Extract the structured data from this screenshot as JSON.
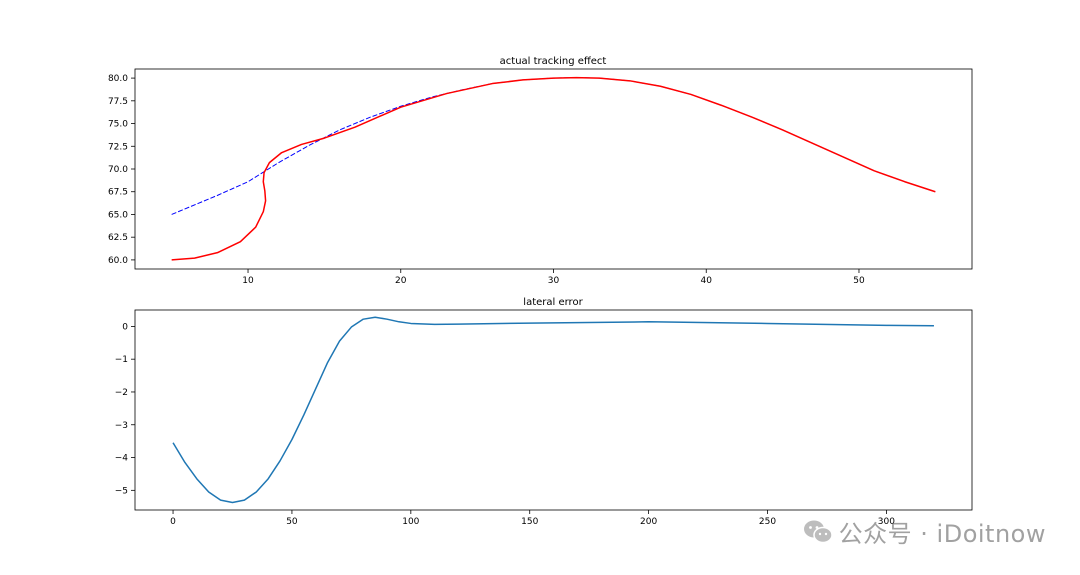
{
  "watermark": {
    "text": "公众号 · iDoitnow",
    "icon": "wechat-icon"
  },
  "chart_data": [
    {
      "type": "line",
      "title": "actual tracking effect",
      "xlabel": "",
      "ylabel": "",
      "xlim": [
        2.6,
        57.4
      ],
      "ylim": [
        59.0,
        81.0
      ],
      "xticks": [
        10,
        20,
        30,
        40,
        50
      ],
      "yticks": [
        60.0,
        62.5,
        65.0,
        67.5,
        70.0,
        72.5,
        75.0,
        77.5,
        80.0
      ],
      "ytick_decimals": 1,
      "grid": false,
      "series": [
        {
          "color": "#0000ff",
          "style": "dashed",
          "x": [
            5,
            8,
            10,
            12,
            14,
            16,
            18,
            20,
            22,
            24,
            26,
            28,
            30,
            31.5,
            33,
            35,
            37,
            39,
            41,
            43,
            45,
            47,
            49,
            51,
            53,
            55
          ],
          "y": [
            65.0,
            67.1,
            68.6,
            70.7,
            72.6,
            74.3,
            75.7,
            76.9,
            77.9,
            78.7,
            79.4,
            79.8,
            80.0,
            80.05,
            80.0,
            79.7,
            79.1,
            78.2,
            77.0,
            75.7,
            74.3,
            72.8,
            71.3,
            69.8,
            68.6,
            67.5
          ]
        },
        {
          "color": "#ff0000",
          "style": "solid",
          "x": [
            5,
            6.5,
            8,
            9.5,
            10.5,
            11.0,
            11.15,
            11.1,
            11.0,
            11.05,
            11.4,
            12.2,
            13.5,
            15,
            17,
            20,
            23,
            26,
            28,
            30,
            31.5,
            33,
            35,
            37,
            39,
            41,
            43,
            45,
            47,
            49,
            51,
            53,
            55
          ],
          "y": [
            60.0,
            60.2,
            60.8,
            62.0,
            63.6,
            65.3,
            66.5,
            67.6,
            68.6,
            69.6,
            70.7,
            71.8,
            72.7,
            73.4,
            74.6,
            76.8,
            78.3,
            79.4,
            79.8,
            80.0,
            80.05,
            80.0,
            79.7,
            79.1,
            78.2,
            77.0,
            75.7,
            74.3,
            72.8,
            71.3,
            69.8,
            68.6,
            67.5
          ]
        }
      ]
    },
    {
      "type": "line",
      "title": "lateral error",
      "xlabel": "",
      "ylabel": "",
      "xlim": [
        -16,
        336
      ],
      "ylim": [
        -5.6,
        0.5
      ],
      "xticks": [
        0,
        50,
        100,
        150,
        200,
        250,
        300
      ],
      "yticks": [
        0,
        -1,
        -2,
        -3,
        -4,
        -5
      ],
      "ytick_decimals": 0,
      "grid": false,
      "series": [
        {
          "color": "#1f77b4",
          "style": "solid",
          "x": [
            0,
            5,
            10,
            15,
            20,
            25,
            30,
            35,
            40,
            45,
            50,
            55,
            60,
            65,
            70,
            75,
            80,
            85,
            90,
            95,
            100,
            110,
            120,
            150,
            200,
            250,
            300,
            320
          ],
          "y": [
            -3.55,
            -4.15,
            -4.65,
            -5.05,
            -5.3,
            -5.37,
            -5.3,
            -5.05,
            -4.65,
            -4.1,
            -3.45,
            -2.7,
            -1.9,
            -1.1,
            -0.45,
            -0.02,
            0.22,
            0.28,
            0.22,
            0.14,
            0.09,
            0.06,
            0.07,
            0.1,
            0.14,
            0.09,
            0.03,
            0.02
          ]
        }
      ]
    }
  ]
}
